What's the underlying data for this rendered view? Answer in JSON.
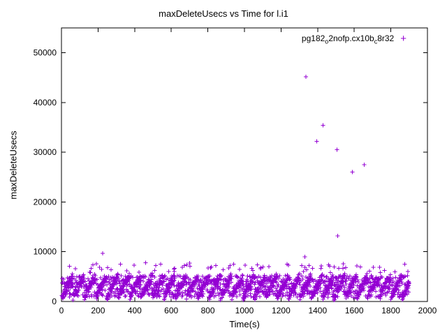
{
  "title": "maxDeleteUsecs vs Time for l.i1",
  "legend": {
    "pre": "pg182",
    "sub1": "o",
    "mid": "2nofp.cx10b",
    "sub2": "c",
    "post": "8r32",
    "marker_glyph": "+"
  },
  "colors": {
    "marker": "#9400d3",
    "axis": "#000000",
    "background": "#ffffff"
  },
  "chart_data": {
    "type": "scatter",
    "title": "maxDeleteUsecs vs Time for l.i1",
    "xlabel": "Time(s)",
    "ylabel": "maxDeleteUsecs",
    "legend_label": "pg182_o2nofp.cx10b_c8r32",
    "legend_position": "top-right-inside",
    "grid": false,
    "xlim": [
      0,
      2000
    ],
    "ylim": [
      0,
      55000
    ],
    "x_ticks": [
      0,
      200,
      400,
      600,
      800,
      1000,
      1200,
      1400,
      1600,
      1800,
      2000
    ],
    "y_ticks": [
      0,
      10000,
      20000,
      30000,
      40000,
      50000
    ],
    "marker": "plus",
    "baseline_band": {
      "description": "dense periodic sawtooth band of plus markers along the bottom",
      "t_start": 2,
      "t_end": 1900,
      "step": 1.5,
      "period": 62,
      "y_base": 900,
      "y_ramp": 4200,
      "y_noise": 1600,
      "y_min": 300,
      "uniform_low": 800,
      "uniform_high": 5200,
      "uniform_prob": 0.75,
      "fringe_prob": 0.05,
      "fringe_low": 5800,
      "fringe_high": 7600,
      "seed": 42
    },
    "outliers": [
      [
        190,
        7600
      ],
      [
        225,
        9700
      ],
      [
        460,
        7800
      ],
      [
        700,
        7700
      ],
      [
        940,
        7500
      ],
      [
        1240,
        7300
      ],
      [
        1330,
        9000
      ],
      [
        1335,
        45200
      ],
      [
        1395,
        32200
      ],
      [
        1430,
        35400
      ],
      [
        1505,
        30500
      ],
      [
        1510,
        13200
      ],
      [
        1590,
        26000
      ],
      [
        1655,
        27500
      ]
    ]
  }
}
